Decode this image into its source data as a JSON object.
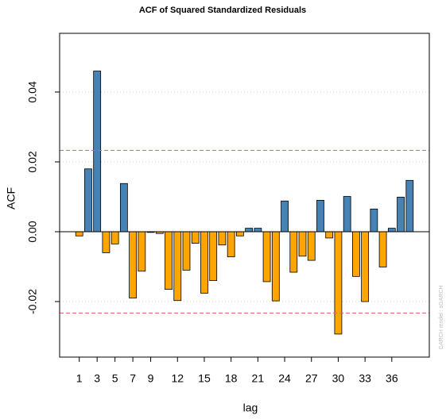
{
  "chart_data": {
    "type": "bar",
    "title": "ACF of Squared Standardized Residuals",
    "xlabel": "lag",
    "ylabel": "ACF",
    "side_note": "GARCH model : sGARCH",
    "x": [
      1,
      2,
      3,
      4,
      5,
      6,
      7,
      8,
      9,
      10,
      11,
      12,
      13,
      14,
      15,
      16,
      17,
      18,
      19,
      20,
      21,
      22,
      23,
      24,
      25,
      26,
      27,
      28,
      29,
      30,
      31,
      32,
      33,
      34,
      35,
      36,
      37,
      38
    ],
    "values": [
      -0.0012,
      0.018,
      0.046,
      -0.006,
      -0.0035,
      0.0138,
      -0.019,
      -0.0113,
      -0.0002,
      -0.0005,
      -0.0165,
      -0.0197,
      -0.011,
      -0.0033,
      -0.0176,
      -0.014,
      -0.0038,
      -0.0072,
      -0.0012,
      0.001,
      0.001,
      -0.0143,
      -0.0198,
      0.0088,
      -0.0116,
      -0.007,
      -0.0082,
      0.009,
      -0.0018,
      -0.0293,
      0.0101,
      -0.0128,
      -0.02,
      0.0065,
      -0.0101,
      0.001,
      0.0099,
      0.0147
    ],
    "positive_color": "#4682b4",
    "negative_color": "#ffa500",
    "confidence_bounds": [
      0.0233,
      -0.0233
    ],
    "bound_color": "#e06666",
    "xlim": [
      -1.2,
      40.2
    ],
    "xticks": [
      1,
      3,
      5,
      7,
      9,
      12,
      15,
      18,
      21,
      24,
      27,
      30,
      33,
      36
    ],
    "ylim": [
      -0.0359,
      0.0568
    ],
    "yticks": [
      -0.02,
      {
        "value": 0,
        "label": "0.00"
      },
      0.02,
      0.04
    ],
    "grid": true
  }
}
